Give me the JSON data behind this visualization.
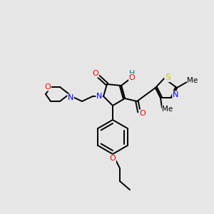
{
  "bg_color": "#e6e6e6",
  "bond_color": "#000000",
  "atom_colors": {
    "O": "#ff0000",
    "N": "#0000ff",
    "S": "#cccc00",
    "C": "#000000",
    "H": "#008080"
  },
  "figsize": [
    3.0,
    3.0
  ],
  "dpi": 100
}
